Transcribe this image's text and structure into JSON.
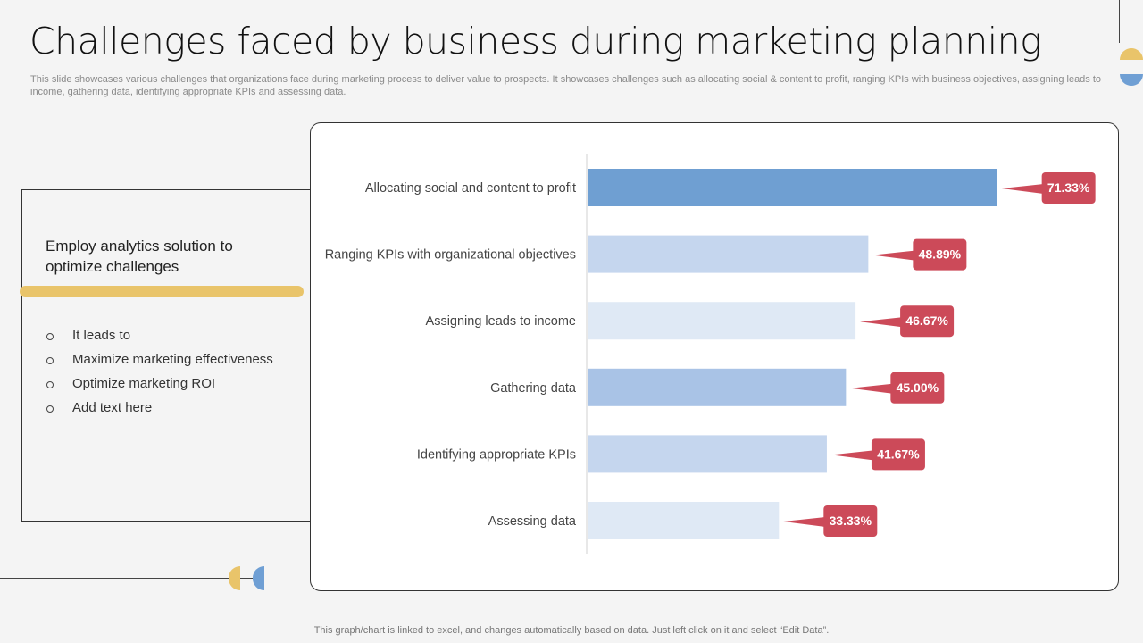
{
  "slide": {
    "title": "Challenges faced by business during marketing planning",
    "subtitle": "This slide showcases various challenges that organizations face during marketing process to deliver value to prospects. It showcases challenges such as allocating social & content to profit, ranging KPIs with business objectives, assigning leads to income, gathering data, identifying appropriate KPIs and assessing data.",
    "footer": "This graph/chart is linked to excel,  and changes automatically based on data. Just left click on it and select “Edit Data”."
  },
  "panel": {
    "heading": "Employ analytics solution to optimize challenges",
    "bullets": [
      "It leads to",
      "Maximize marketing effectiveness",
      "Optimize marketing ROI",
      "Add text here"
    ]
  },
  "chart_data": {
    "type": "bar",
    "orientation": "horizontal",
    "categories": [
      "Allocating social and content to profit",
      "Ranging KPIs with organizational objectives",
      "Assigning leads to income",
      "Gathering data",
      "Identifying appropriate KPIs",
      "Assessing data"
    ],
    "values": [
      71.33,
      48.89,
      46.67,
      45.0,
      41.67,
      33.33
    ],
    "data_labels": [
      "71.33%",
      "48.89%",
      "46.67%",
      "45.00%",
      "41.67%",
      "33.33%"
    ],
    "bar_colors": [
      "#6f9fd2",
      "#c5d6ee",
      "#dfe9f5",
      "#a9c3e6",
      "#c5d6ee",
      "#dfe9f5"
    ],
    "label_color": "#cc4a59",
    "xlim": [
      0,
      100
    ],
    "title": "",
    "xlabel": "",
    "ylabel": "",
    "grid": false,
    "legend": "none"
  }
}
